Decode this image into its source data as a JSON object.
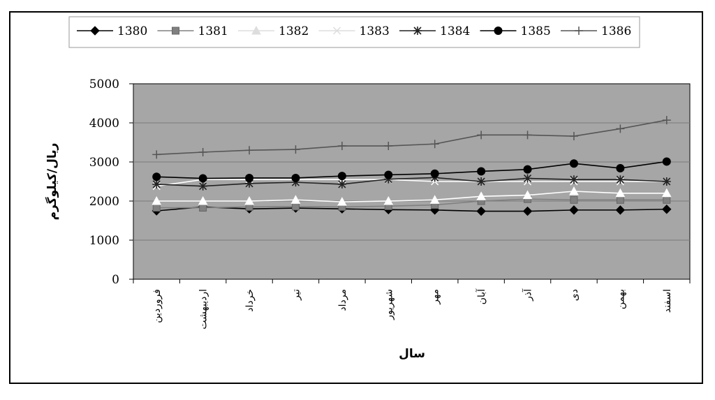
{
  "chart_data": {
    "type": "line",
    "title": "",
    "xlabel": "سال",
    "ylabel": "ریال/کیلوگرم",
    "ylim": [
      0,
      5000
    ],
    "yticks": [
      0,
      1000,
      2000,
      3000,
      4000,
      5000
    ],
    "grid": true,
    "legend_position": "top",
    "plot_background": "#a6a6a6",
    "categories": [
      "فروردین",
      "اردیبهشت",
      "خرداد",
      "تیر",
      "مرداد",
      "شهریور",
      "مهر",
      "آبان",
      "آذر",
      "دی",
      "بهمن",
      "اسفند"
    ],
    "series": [
      {
        "name": "1380",
        "marker": "diamond",
        "color": "#000000",
        "values": [
          1750,
          1850,
          1800,
          1820,
          1800,
          1780,
          1770,
          1740,
          1740,
          1770,
          1770,
          1790
        ]
      },
      {
        "name": "1381",
        "marker": "square",
        "color": "#808080",
        "values": [
          1830,
          1830,
          1850,
          1860,
          1850,
          1870,
          1900,
          2000,
          2050,
          2030,
          2030,
          2030
        ]
      },
      {
        "name": "1382",
        "marker": "triangle",
        "color": "#ffffff",
        "values": [
          2000,
          2000,
          2000,
          2030,
          1980,
          2000,
          2030,
          2120,
          2150,
          2250,
          2200,
          2200
        ]
      },
      {
        "name": "1383",
        "marker": "x",
        "color": "#ffffff",
        "values": [
          2380,
          2550,
          2550,
          2550,
          2550,
          2550,
          2500,
          2500,
          2500,
          2500,
          2500,
          2500
        ]
      },
      {
        "name": "1384",
        "marker": "star",
        "color": "#222222",
        "values": [
          2430,
          2380,
          2450,
          2480,
          2430,
          2560,
          2600,
          2500,
          2580,
          2550,
          2550,
          2500
        ]
      },
      {
        "name": "1385",
        "marker": "circle",
        "color": "#000000",
        "values": [
          2620,
          2580,
          2590,
          2590,
          2640,
          2670,
          2700,
          2760,
          2810,
          2960,
          2840,
          3010
        ]
      },
      {
        "name": "1386",
        "marker": "plus",
        "color": "#555555",
        "values": [
          3190,
          3250,
          3300,
          3320,
          3410,
          3410,
          3460,
          3690,
          3690,
          3660,
          3850,
          4070
        ]
      }
    ]
  }
}
